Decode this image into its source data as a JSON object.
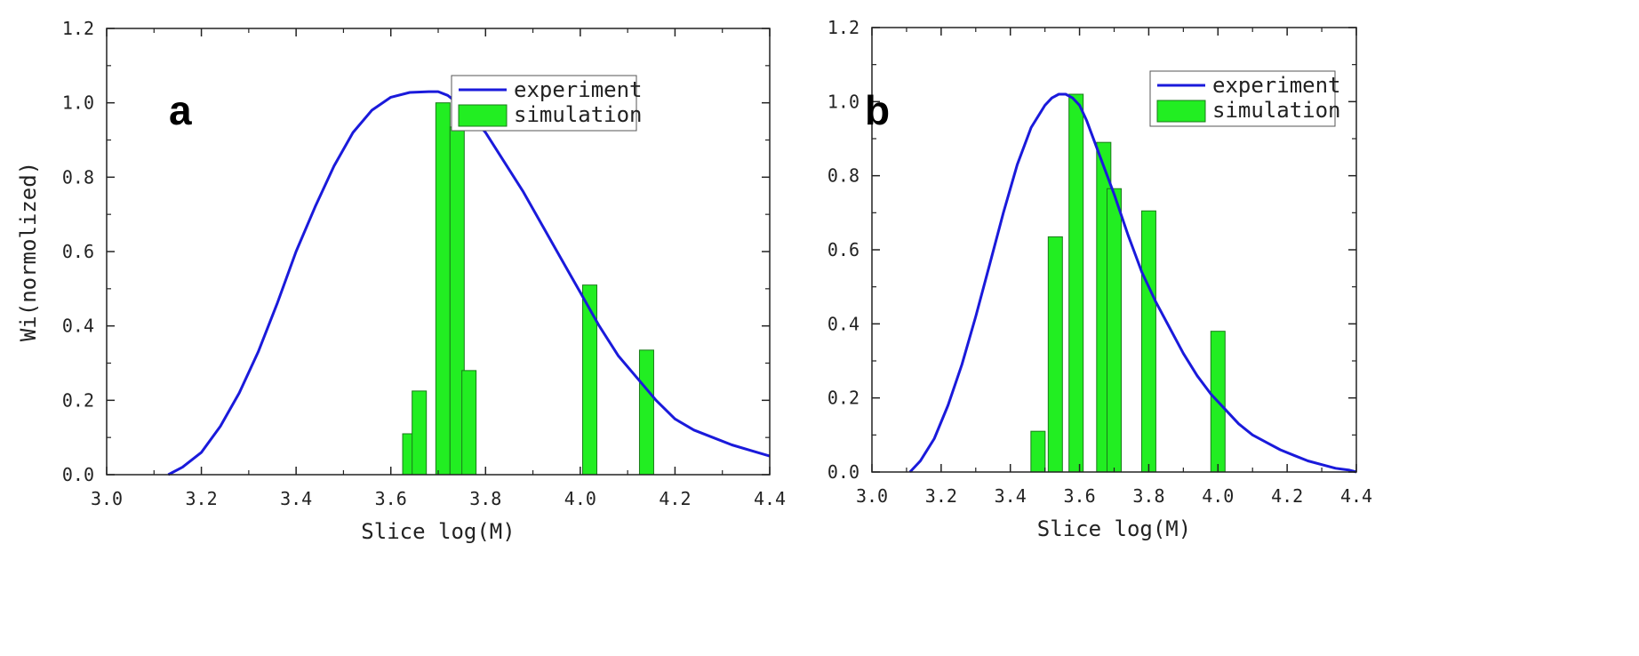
{
  "colors": {
    "curve": "#1a1adb",
    "bar_fill": "#22ee22",
    "bar_stroke": "#1a7a1a",
    "axis": "#222222"
  },
  "chart_data": [
    {
      "panel": "a",
      "type": "bar+line",
      "xlabel": "Slice log(M)",
      "ylabel": "Wi(normolized)",
      "xlim": [
        3.0,
        4.4
      ],
      "ylim": [
        0.0,
        1.2
      ],
      "xticks": [
        "3.0",
        "3.2",
        "3.4",
        "3.6",
        "3.8",
        "4.0",
        "4.2",
        "4.4"
      ],
      "yticks": [
        "0.0",
        "0.2",
        "0.4",
        "0.6",
        "0.8",
        "1.0",
        "1.2"
      ],
      "legend": {
        "position": "top-right",
        "line_label": "experiment",
        "bar_label": "simulation"
      },
      "series": [
        {
          "name": "experiment",
          "kind": "line",
          "x": [
            3.13,
            3.16,
            3.2,
            3.24,
            3.28,
            3.32,
            3.36,
            3.4,
            3.44,
            3.48,
            3.52,
            3.56,
            3.6,
            3.64,
            3.68,
            3.7,
            3.72,
            3.76,
            3.8,
            3.84,
            3.88,
            3.92,
            3.96,
            4.0,
            4.04,
            4.08,
            4.12,
            4.16,
            4.2,
            4.24,
            4.28,
            4.32,
            4.36,
            4.4
          ],
          "y": [
            0.0,
            0.02,
            0.06,
            0.13,
            0.22,
            0.33,
            0.46,
            0.6,
            0.72,
            0.83,
            0.92,
            0.98,
            1.015,
            1.028,
            1.03,
            1.03,
            1.02,
            0.98,
            0.92,
            0.84,
            0.76,
            0.67,
            0.58,
            0.49,
            0.4,
            0.32,
            0.26,
            0.2,
            0.15,
            0.12,
            0.1,
            0.08,
            0.065,
            0.05
          ]
        },
        {
          "name": "simulation",
          "kind": "bar",
          "x": [
            3.64,
            3.66,
            3.71,
            3.74,
            3.765,
            4.02,
            4.14
          ],
          "values": [
            0.11,
            0.225,
            1.0,
            0.935,
            0.28,
            0.51,
            0.335
          ]
        }
      ]
    },
    {
      "panel": "b",
      "type": "bar+line",
      "xlabel": "Slice log(M)",
      "ylabel": "Wi(normolized)",
      "xlim": [
        3.0,
        4.4
      ],
      "ylim": [
        0.0,
        1.2
      ],
      "xticks": [
        "3.0",
        "3.2",
        "3.4",
        "3.6",
        "3.8",
        "4.0",
        "4.2",
        "4.4"
      ],
      "yticks": [
        "0.0",
        "0.2",
        "0.4",
        "0.6",
        "0.8",
        "1.0",
        "1.2"
      ],
      "legend": {
        "position": "top-right",
        "line_label": "experiment",
        "bar_label": "simulation"
      },
      "series": [
        {
          "name": "experiment",
          "kind": "line",
          "x": [
            3.11,
            3.14,
            3.18,
            3.22,
            3.26,
            3.3,
            3.34,
            3.38,
            3.42,
            3.46,
            3.5,
            3.52,
            3.54,
            3.56,
            3.58,
            3.6,
            3.62,
            3.66,
            3.7,
            3.74,
            3.78,
            3.82,
            3.86,
            3.9,
            3.94,
            3.98,
            4.02,
            4.06,
            4.1,
            4.14,
            4.18,
            4.22,
            4.26,
            4.3,
            4.34,
            4.38,
            4.4
          ],
          "y": [
            0.0,
            0.03,
            0.09,
            0.18,
            0.29,
            0.42,
            0.56,
            0.7,
            0.83,
            0.93,
            0.99,
            1.01,
            1.02,
            1.02,
            1.01,
            0.99,
            0.95,
            0.85,
            0.75,
            0.64,
            0.54,
            0.46,
            0.39,
            0.32,
            0.26,
            0.21,
            0.17,
            0.13,
            0.1,
            0.08,
            0.06,
            0.045,
            0.03,
            0.02,
            0.01,
            0.005,
            0.0
          ]
        },
        {
          "name": "simulation",
          "kind": "bar",
          "x": [
            3.48,
            3.53,
            3.59,
            3.67,
            3.7,
            3.8,
            4.0
          ],
          "values": [
            0.11,
            0.635,
            1.02,
            0.89,
            0.765,
            0.705,
            0.38
          ]
        }
      ]
    }
  ],
  "panel_labels": [
    "a",
    "b"
  ]
}
